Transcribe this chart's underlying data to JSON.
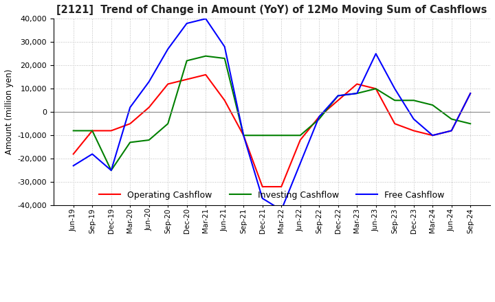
{
  "title": "[2121]  Trend of Change in Amount (YoY) of 12Mo Moving Sum of Cashflows",
  "ylabel": "Amount (million yen)",
  "ylim": [
    -40000,
    40000
  ],
  "yticks": [
    -40000,
    -30000,
    -20000,
    -10000,
    0,
    10000,
    20000,
    30000,
    40000
  ],
  "x_labels": [
    "Jun-19",
    "Sep-19",
    "Dec-19",
    "Mar-20",
    "Jun-20",
    "Sep-20",
    "Dec-20",
    "Mar-21",
    "Jun-21",
    "Sep-21",
    "Dec-21",
    "Mar-22",
    "Jun-22",
    "Sep-22",
    "Dec-22",
    "Mar-23",
    "Jun-23",
    "Sep-23",
    "Dec-23",
    "Mar-24",
    "Jun-24",
    "Sep-24"
  ],
  "operating": [
    -18000,
    -8000,
    -8000,
    -5000,
    2000,
    12000,
    14000,
    16000,
    5000,
    -10000,
    -32000,
    -32000,
    -12000,
    -2000,
    5000,
    12000,
    10000,
    -5000,
    -8000,
    -10000,
    -8000,
    8000
  ],
  "investing": [
    -8000,
    -8000,
    -25000,
    -13000,
    -12000,
    -5000,
    22000,
    24000,
    23000,
    -10000,
    -10000,
    -10000,
    -10000,
    -3000,
    7000,
    8000,
    10000,
    5000,
    5000,
    3000,
    -3000,
    -5000
  ],
  "free": [
    -23000,
    -18000,
    -25000,
    2000,
    13000,
    27000,
    38000,
    40000,
    28000,
    -10000,
    -37000,
    -42000,
    -22000,
    -2000,
    7000,
    8000,
    25000,
    10000,
    -3000,
    -10000,
    -8000,
    8000
  ],
  "operating_color": "#ff0000",
  "investing_color": "#008000",
  "free_color": "#0000ff",
  "background_color": "#ffffff",
  "grid_color": "#bbbbbb"
}
